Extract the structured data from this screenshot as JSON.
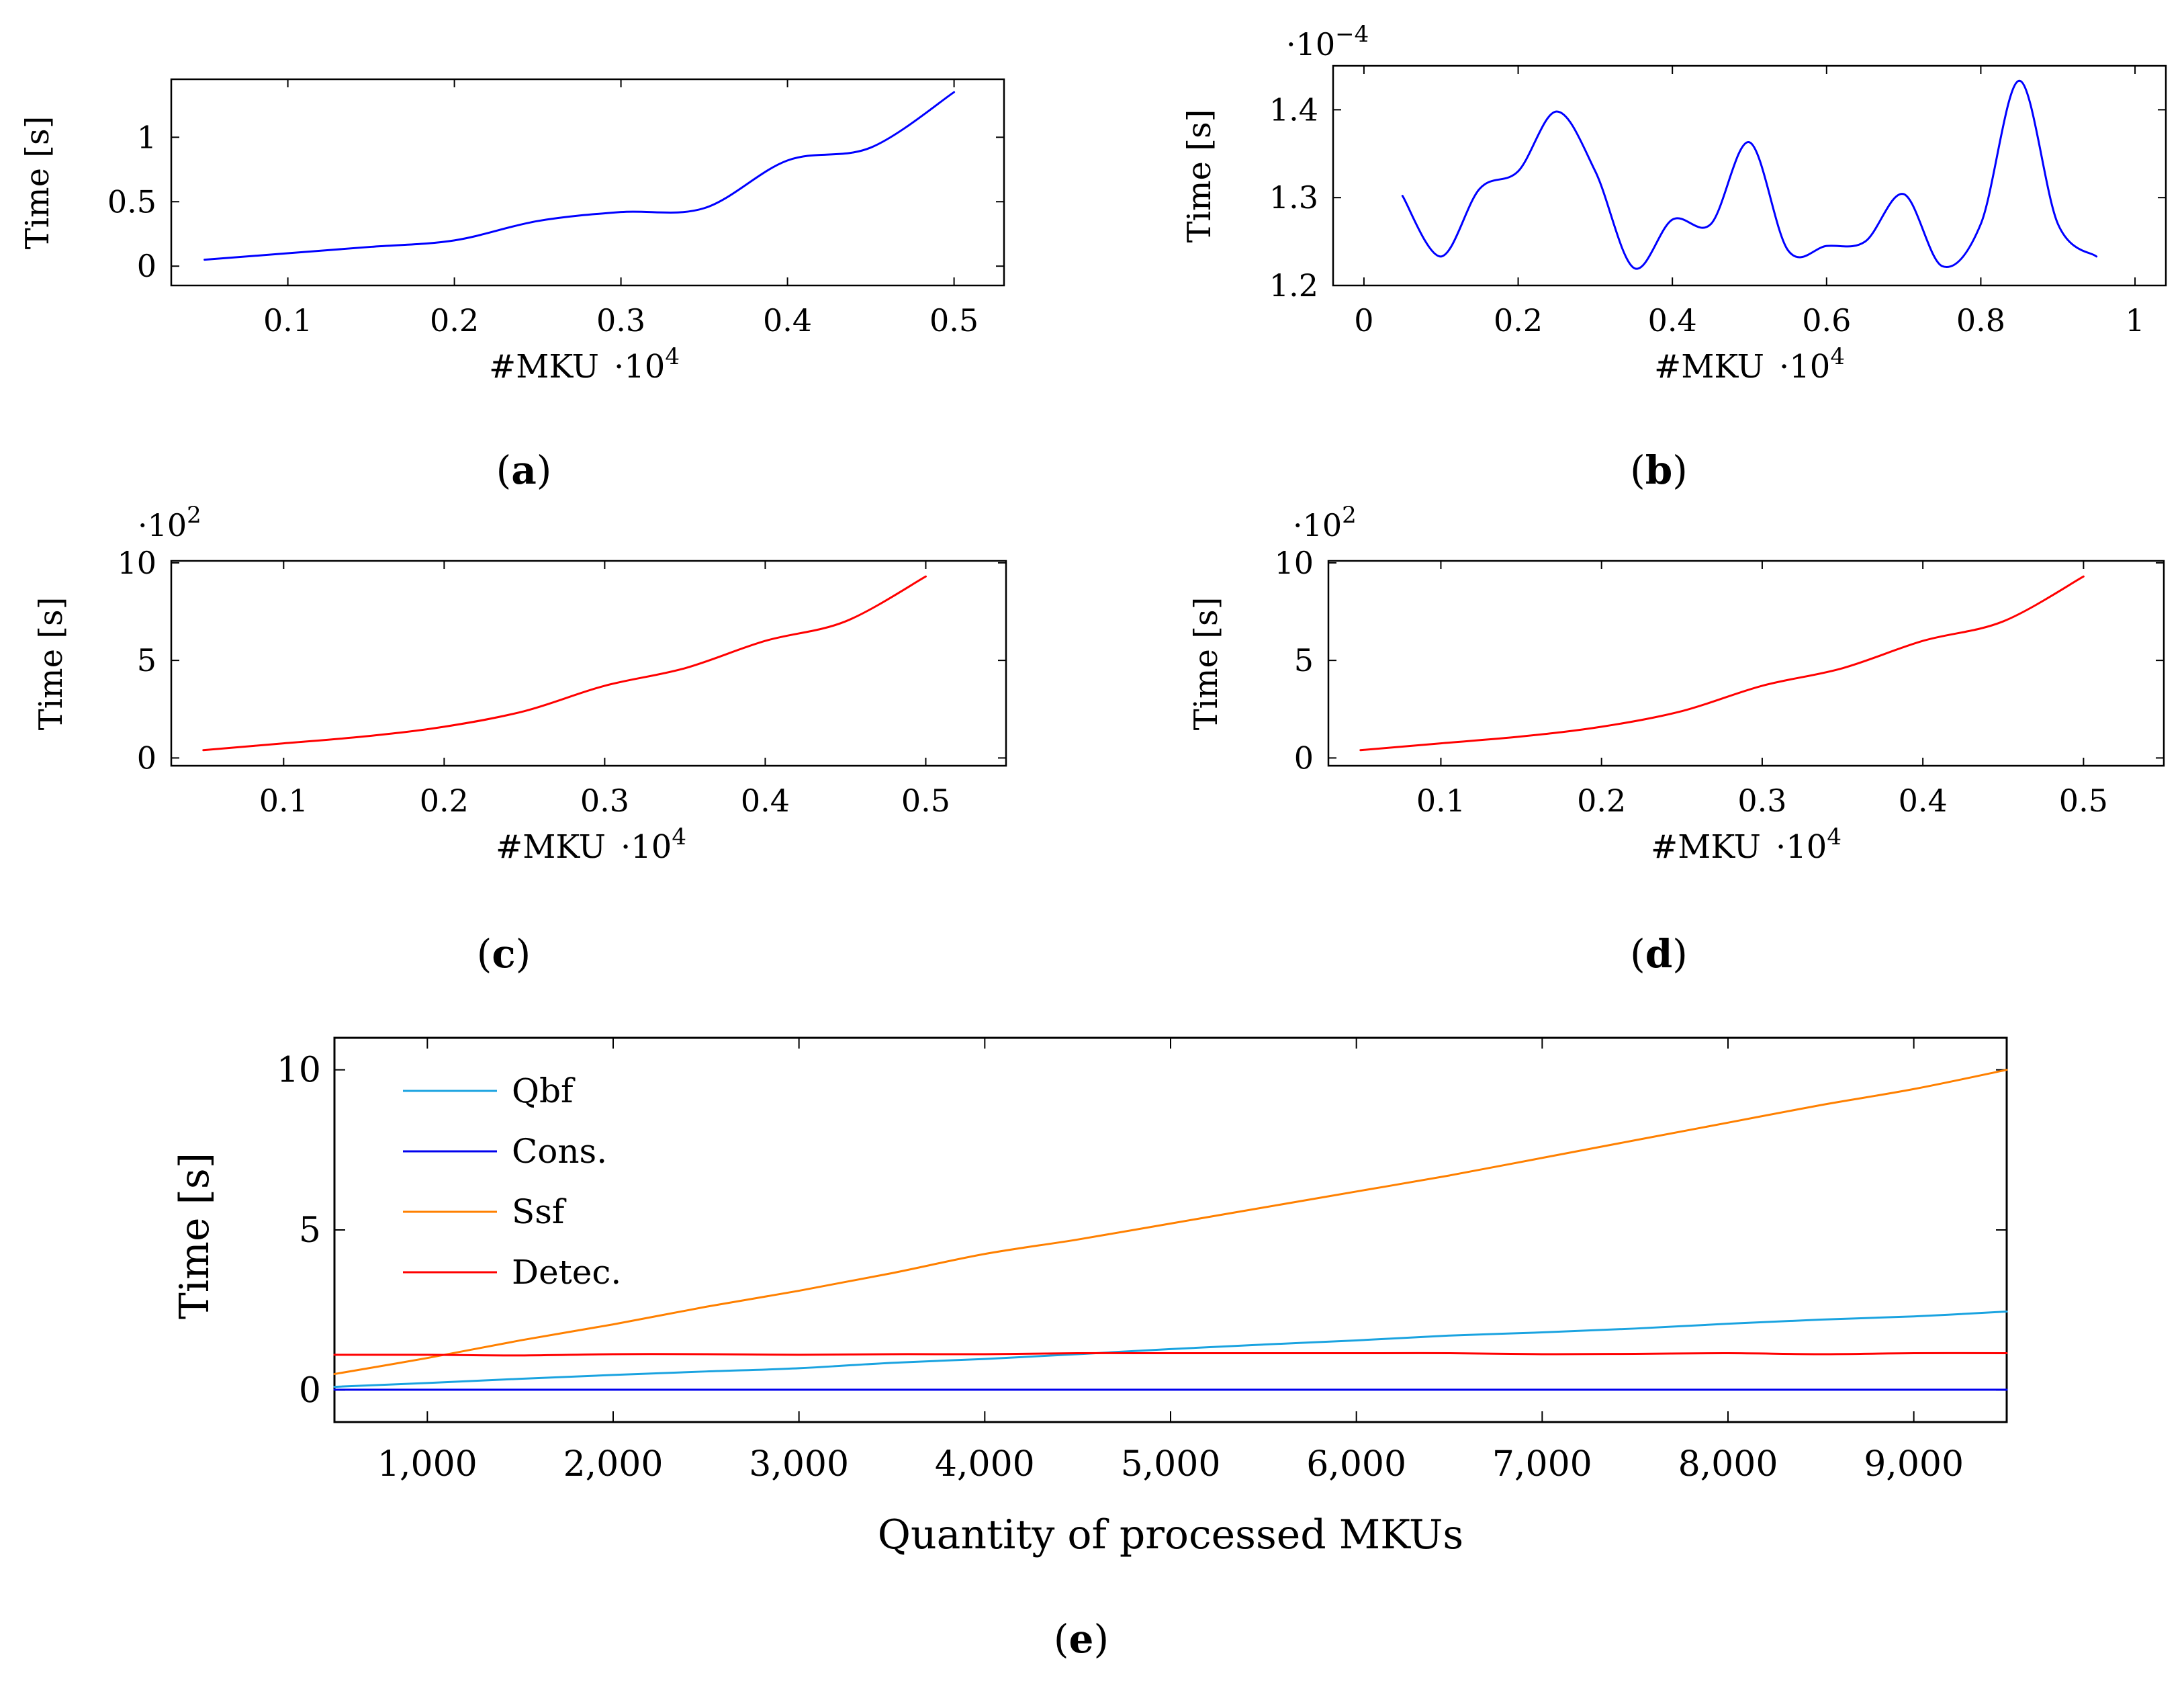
{
  "chart_data": [
    {
      "id": "a",
      "type": "line",
      "caption_letter": "a",
      "xlabel": "#MKU",
      "xlabel_exponent": "·10",
      "xlabel_exponent_power": "4",
      "ylabel": "Time [s]",
      "y_multiplier": "",
      "y_multiplier_power": "",
      "xlim": [
        0.03,
        0.53
      ],
      "ylim": [
        -0.15,
        1.45
      ],
      "xticks": [
        0.1,
        0.2,
        0.3,
        0.4,
        0.5
      ],
      "xtick_labels": [
        "0.1",
        "0.2",
        "0.3",
        "0.4",
        "0.5"
      ],
      "yticks": [
        0,
        0.5,
        1
      ],
      "ytick_labels": [
        "0",
        "0.5",
        "1"
      ],
      "series": [
        {
          "name": "",
          "color": "#0000ff",
          "x": [
            0.05,
            0.1,
            0.15,
            0.2,
            0.25,
            0.3,
            0.35,
            0.4,
            0.45,
            0.5
          ],
          "y": [
            0.05,
            0.1,
            0.15,
            0.2,
            0.35,
            0.42,
            0.45,
            0.82,
            0.92,
            1.35
          ]
        }
      ]
    },
    {
      "id": "b",
      "type": "line",
      "caption_letter": "b",
      "xlabel": "#MKU",
      "xlabel_exponent": "·10",
      "xlabel_exponent_power": "4",
      "ylabel": "Time [s]",
      "y_multiplier": "·10",
      "y_multiplier_power": "−4",
      "xlim": [
        -0.04,
        1.04
      ],
      "ylim": [
        1.2,
        1.45
      ],
      "xticks": [
        0,
        0.2,
        0.4,
        0.6,
        0.8,
        1
      ],
      "xtick_labels": [
        "0",
        "0.2",
        "0.4",
        "0.6",
        "0.8",
        "1"
      ],
      "yticks": [
        1.2,
        1.3,
        1.4
      ],
      "ytick_labels": [
        "1.2",
        "1.3",
        "1.4"
      ],
      "series": [
        {
          "name": "",
          "color": "#0000ff",
          "x": [
            0.05,
            0.1,
            0.15,
            0.2,
            0.25,
            0.3,
            0.35,
            0.4,
            0.45,
            0.5,
            0.55,
            0.6,
            0.65,
            0.7,
            0.75,
            0.8,
            0.85,
            0.9,
            0.95
          ],
          "y": [
            1.302,
            1.233,
            1.31,
            1.33,
            1.398,
            1.33,
            1.22,
            1.275,
            1.27,
            1.363,
            1.24,
            1.245,
            1.25,
            1.304,
            1.222,
            1.27,
            1.433,
            1.27,
            1.233
          ]
        }
      ]
    },
    {
      "id": "c",
      "type": "line",
      "caption_letter": "c",
      "xlabel": "#MKU",
      "xlabel_exponent": "·10",
      "xlabel_exponent_power": "4",
      "ylabel": "Time [s]",
      "y_multiplier": "·10",
      "y_multiplier_power": "2",
      "xlim": [
        0.03,
        0.55
      ],
      "ylim": [
        -0.4,
        10.1
      ],
      "xticks": [
        0.1,
        0.2,
        0.3,
        0.4,
        0.5
      ],
      "xtick_labels": [
        "0.1",
        "0.2",
        "0.3",
        "0.4",
        "0.5"
      ],
      "yticks": [
        0,
        5,
        10
      ],
      "ytick_labels": [
        "0",
        "5",
        "10"
      ],
      "series": [
        {
          "name": "",
          "color": "#ff0000",
          "x": [
            0.05,
            0.1,
            0.15,
            0.2,
            0.25,
            0.3,
            0.35,
            0.4,
            0.45,
            0.5
          ],
          "y": [
            0.4,
            0.75,
            1.1,
            1.6,
            2.4,
            3.7,
            4.6,
            6.0,
            7.0,
            9.3
          ]
        }
      ]
    },
    {
      "id": "d",
      "type": "line",
      "caption_letter": "d",
      "xlabel": "#MKU",
      "xlabel_exponent": "·10",
      "xlabel_exponent_power": "4",
      "ylabel": "Time [s]",
      "y_multiplier": "·10",
      "y_multiplier_power": "2",
      "xlim": [
        0.03,
        0.55
      ],
      "ylim": [
        -0.4,
        10.1
      ],
      "xticks": [
        0.1,
        0.2,
        0.3,
        0.4,
        0.5
      ],
      "xtick_labels": [
        "0.1",
        "0.2",
        "0.3",
        "0.4",
        "0.5"
      ],
      "yticks": [
        0,
        5,
        10
      ],
      "ytick_labels": [
        "0",
        "5",
        "10"
      ],
      "series": [
        {
          "name": "",
          "color": "#ff0000",
          "x": [
            0.05,
            0.1,
            0.15,
            0.2,
            0.25,
            0.3,
            0.35,
            0.4,
            0.45,
            0.5
          ],
          "y": [
            0.4,
            0.75,
            1.1,
            1.6,
            2.4,
            3.7,
            4.6,
            6.0,
            7.0,
            9.3
          ]
        }
      ]
    },
    {
      "id": "e",
      "type": "line",
      "caption_letter": "e",
      "xlabel": "Quantity of processed MKUs",
      "ylabel": "Time [s]",
      "xlim": [
        500,
        9500
      ],
      "ylim": [
        -1,
        11
      ],
      "xticks": [
        1000,
        2000,
        3000,
        4000,
        5000,
        6000,
        7000,
        8000,
        9000
      ],
      "xtick_labels": [
        "1,000",
        "2,000",
        "3,000",
        "4,000",
        "5,000",
        "6,000",
        "7,000",
        "8,000",
        "9,000"
      ],
      "yticks": [
        0,
        5,
        10
      ],
      "ytick_labels": [
        "0",
        "5",
        "10"
      ],
      "legend_position": "top-left",
      "series": [
        {
          "name": "Qbf",
          "color": "#1aa3e0",
          "x": [
            500,
            1000,
            1500,
            2000,
            2500,
            3000,
            3500,
            4000,
            4500,
            5000,
            5500,
            6000,
            6500,
            7000,
            7500,
            8000,
            8500,
            9000,
            9500
          ],
          "y": [
            0.1,
            0.22,
            0.35,
            0.47,
            0.58,
            0.68,
            0.85,
            0.97,
            1.12,
            1.28,
            1.42,
            1.55,
            1.7,
            1.8,
            1.92,
            2.07,
            2.2,
            2.3,
            2.45
          ]
        },
        {
          "name": "Cons.",
          "color": "#0000ee",
          "x": [
            500,
            1000,
            2000,
            3000,
            4000,
            5000,
            6000,
            7000,
            8000,
            9000,
            9500
          ],
          "y": [
            0.01,
            0.01,
            0.01,
            0.01,
            0.01,
            0.01,
            0.01,
            0.01,
            0.01,
            0.01,
            0.01
          ]
        },
        {
          "name": "Ssf",
          "color": "#ff8000",
          "x": [
            500,
            1000,
            1500,
            2000,
            2500,
            3000,
            3500,
            4000,
            4500,
            5000,
            5500,
            6000,
            6500,
            7000,
            7500,
            8000,
            8500,
            9000,
            9500
          ],
          "y": [
            0.5,
            1.0,
            1.55,
            2.05,
            2.6,
            3.1,
            3.65,
            4.25,
            4.7,
            5.2,
            5.7,
            6.2,
            6.7,
            7.25,
            7.8,
            8.35,
            8.9,
            9.4,
            10.0
          ]
        },
        {
          "name": "Detec.",
          "color": "#ff0000",
          "x": [
            500,
            1000,
            1500,
            2000,
            2500,
            3000,
            3500,
            4000,
            4500,
            5000,
            5500,
            6000,
            6500,
            7000,
            7500,
            8000,
            8500,
            9000,
            9500
          ],
          "y": [
            1.1,
            1.1,
            1.08,
            1.12,
            1.12,
            1.1,
            1.12,
            1.12,
            1.15,
            1.15,
            1.15,
            1.15,
            1.15,
            1.12,
            1.13,
            1.15,
            1.12,
            1.15,
            1.15
          ]
        }
      ]
    }
  ]
}
